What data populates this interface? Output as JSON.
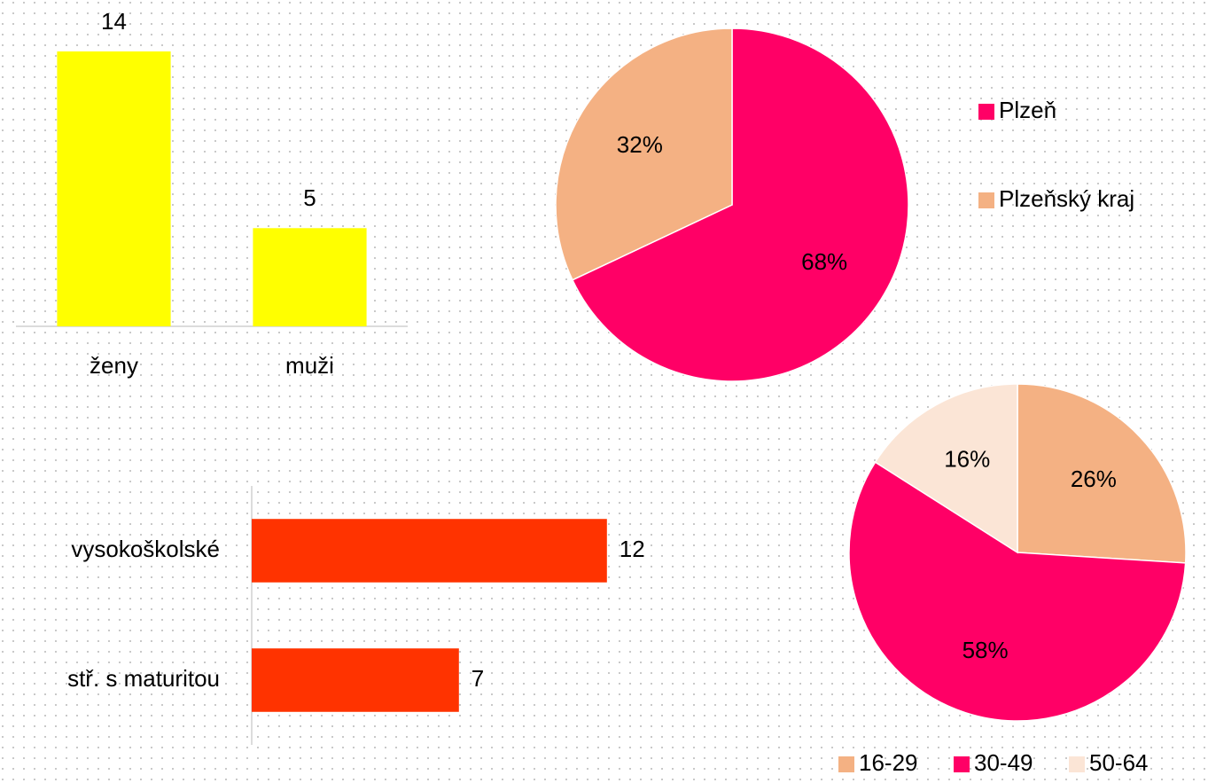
{
  "chart_data": [
    {
      "type": "bar",
      "categories": [
        "ženy",
        "muži"
      ],
      "values": [
        14,
        5
      ],
      "color": "#ffff00"
    },
    {
      "type": "pie",
      "categories": [
        "Plzeň",
        "Plzeňský kraj"
      ],
      "values": [
        68,
        32
      ],
      "value_labels": [
        "68%",
        "32%"
      ],
      "colors": [
        "#ff0066",
        "#f4b183"
      ],
      "legend": "right"
    },
    {
      "type": "barh",
      "categories": [
        "vysokoškolské",
        "stř. s maturitou"
      ],
      "values": [
        12,
        7
      ],
      "color": "#ff3300"
    },
    {
      "type": "pie",
      "categories": [
        "16-29",
        "30-49",
        "50-64"
      ],
      "values": [
        26,
        58,
        16
      ],
      "value_labels": [
        "26%",
        "58%",
        "16%"
      ],
      "colors": [
        "#f4b183",
        "#ff0066",
        "#fbe5d6"
      ],
      "legend": "bottom"
    }
  ]
}
